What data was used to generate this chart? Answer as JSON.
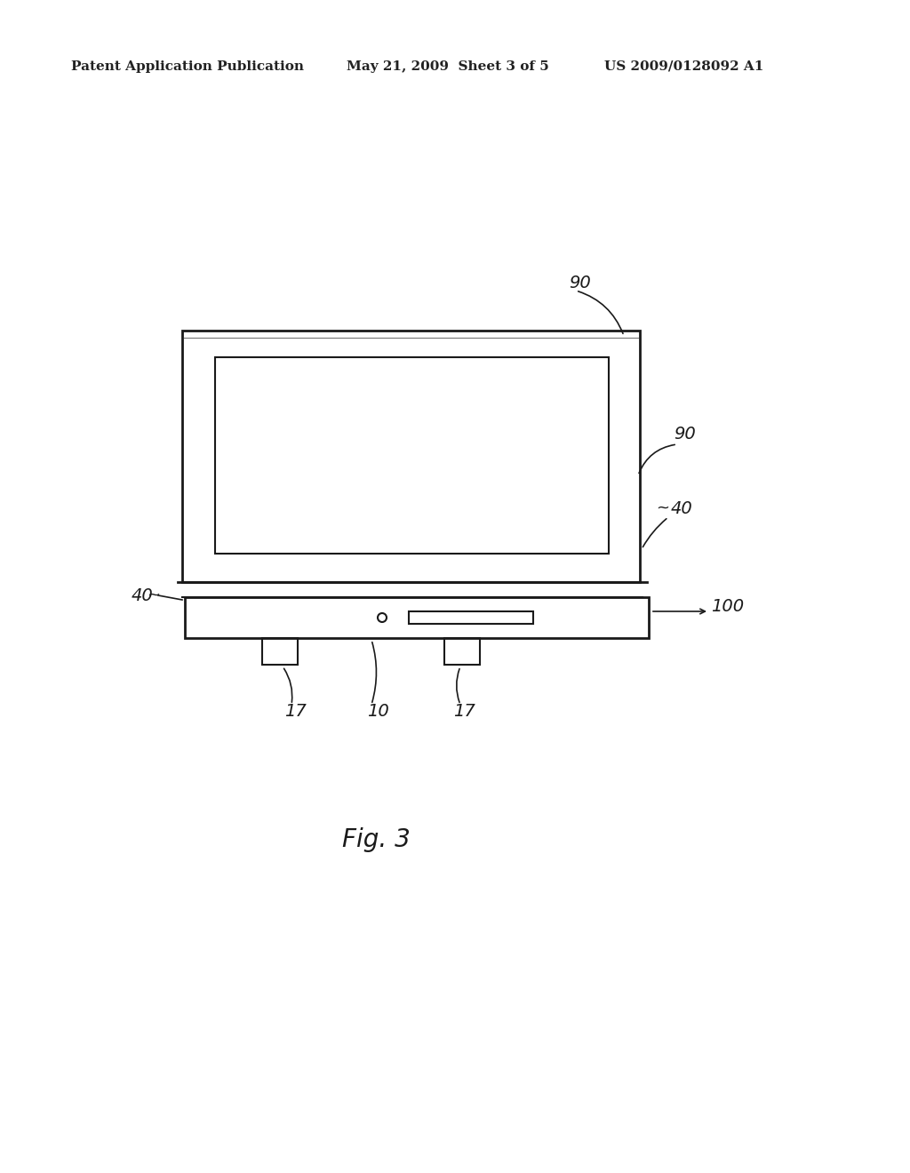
{
  "background_color": "#ffffff",
  "header_left": "Patent Application Publication",
  "header_mid": "May 21, 2009  Sheet 3 of 5",
  "header_right": "US 2009/0128092 A1",
  "fig_label": "Fig. 3",
  "labels": {
    "90_top": "90",
    "90_mid": "90",
    "40_left": "40",
    "40_right": "40",
    "100": "100",
    "17_left": "17",
    "17_right": "17",
    "10": "10"
  }
}
